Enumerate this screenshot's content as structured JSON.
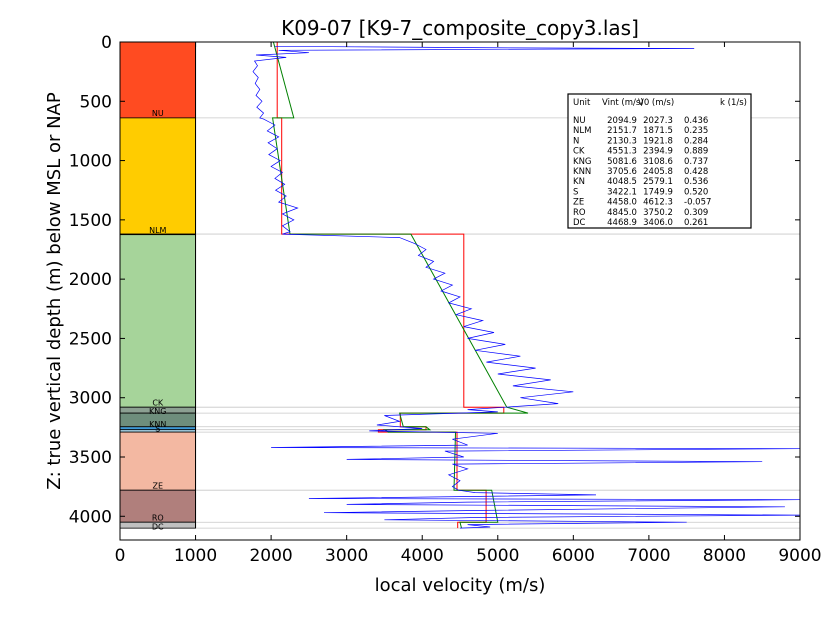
{
  "chart_data": {
    "type": "line",
    "title": "K09-07 [K9-7_composite_copy3.las]",
    "xlabel": "local velocity (m/s)",
    "ylabel": "Z: true vertical depth (m) below MSL or NAP",
    "xlim": [
      0,
      9000
    ],
    "ylim": [
      4200,
      0
    ],
    "x_ticks": [
      "0",
      "1000",
      "2000",
      "3000",
      "4000",
      "5000",
      "6000",
      "7000",
      "8000",
      "9000"
    ],
    "y_ticks": [
      "0",
      "500",
      "1000",
      "1500",
      "2000",
      "2500",
      "3000",
      "3500",
      "4000"
    ],
    "grid": false,
    "legend_position": "upper-right",
    "units": [
      {
        "name": "NU",
        "top": 0,
        "base": 640,
        "color": "#ff4b21",
        "vint": "2094.9",
        "v0": "2027.3",
        "k": "0.436"
      },
      {
        "name": "NLM",
        "top": 640,
        "base": 1620,
        "color": "#ffcc00",
        "vint": "2151.7",
        "v0": "1871.5",
        "k": "0.235"
      },
      {
        "name": "N",
        "top": 1620,
        "base": 1625,
        "color": "#b8d8a8",
        "vint": "2130.3",
        "v0": "1921.8",
        "k": "0.284"
      },
      {
        "name": "CK",
        "top": 1625,
        "base": 3080,
        "color": "#a6d49a",
        "vint": "4551.3",
        "v0": "2394.9",
        "k": "0.889"
      },
      {
        "name": "KNG",
        "top": 3080,
        "base": 3130,
        "color": "#8ca092",
        "vint": "5081.6",
        "v0": "3108.6",
        "k": "0.737"
      },
      {
        "name": "KNN",
        "top": 3130,
        "base": 3245,
        "color": "#6e8e7c",
        "vint": "3705.6",
        "v0": "2405.8",
        "k": "0.428"
      },
      {
        "name": "KN",
        "top": 3245,
        "base": 3270,
        "color": "#3f9ad6",
        "vint": "4048.5",
        "v0": "2579.1",
        "k": "0.536"
      },
      {
        "name": "S",
        "top": 3270,
        "base": 3290,
        "color": "#aedcf0",
        "vint": "3422.1",
        "v0": "1749.9",
        "k": "0.520"
      },
      {
        "name": "ZE",
        "top": 3290,
        "base": 3780,
        "color": "#f3b8a2",
        "vint": "4458.0",
        "v0": "4612.3",
        "k": "-0.057"
      },
      {
        "name": "RO",
        "top": 3780,
        "base": 4050,
        "color": "#b07f7c",
        "vint": "4845.0",
        "v0": "3750.2",
        "k": "0.309"
      },
      {
        "name": "DC",
        "top": 4050,
        "base": 4100,
        "color": "#c0c0c0",
        "vint": "4468.9",
        "v0": "3406.0",
        "k": "0.261"
      }
    ],
    "strip_labels": [
      {
        "text": "NU",
        "depth": 600
      },
      {
        "text": "NLM",
        "depth": 1585
      },
      {
        "text": "CK",
        "depth": 3040
      },
      {
        "text": "KNG",
        "depth": 3110
      },
      {
        "text": "KNN",
        "depth": 3220
      },
      {
        "text": "S",
        "depth": 3260
      },
      {
        "text": "ZE",
        "depth": 3740
      },
      {
        "text": "RO",
        "depth": 4010
      },
      {
        "text": "DC",
        "depth": 4085
      }
    ],
    "legend_header": {
      "unit": "Unit",
      "vint": "Vint (m/s)",
      "v0": "V0 (m/s)",
      "k": "k (1/s)"
    },
    "series": [
      {
        "role": "interval-velocity",
        "color": "#ff0000",
        "points": [
          [
            2080,
            0
          ],
          [
            2080,
            640
          ],
          [
            2140,
            640
          ],
          [
            2140,
            1620
          ],
          [
            4550,
            1620
          ],
          [
            4550,
            3080
          ],
          [
            5080,
            3080
          ],
          [
            5080,
            3130
          ],
          [
            3710,
            3130
          ],
          [
            3710,
            3245
          ],
          [
            4050,
            3245
          ],
          [
            4050,
            3270
          ],
          [
            3420,
            3270
          ],
          [
            3420,
            3290
          ],
          [
            4460,
            3290
          ],
          [
            4460,
            3780
          ],
          [
            4845,
            3780
          ],
          [
            4845,
            4050
          ],
          [
            4470,
            4050
          ],
          [
            4470,
            4100
          ]
        ]
      },
      {
        "role": "v0-k-model",
        "color": "#008000",
        "points": [
          [
            2030,
            0
          ],
          [
            2300,
            640
          ],
          [
            2020,
            640
          ],
          [
            2250,
            1620
          ],
          [
            3850,
            1620
          ],
          [
            5120,
            3080
          ],
          [
            5400,
            3130
          ],
          [
            3700,
            3130
          ],
          [
            3750,
            3245
          ],
          [
            4050,
            3245
          ],
          [
            4100,
            3270
          ],
          [
            3500,
            3270
          ],
          [
            3550,
            3290
          ],
          [
            4440,
            3290
          ],
          [
            4420,
            3780
          ],
          [
            4920,
            3780
          ],
          [
            5000,
            4050
          ],
          [
            4500,
            4050
          ],
          [
            4520,
            4100
          ]
        ]
      },
      {
        "role": "log-velocity",
        "color": "#0000ff",
        "points": [
          [
            2050,
            40
          ],
          [
            2800,
            40
          ],
          [
            5200,
            50
          ],
          [
            7600,
            55
          ],
          [
            2100,
            70
          ],
          [
            2500,
            90
          ],
          [
            1800,
            110
          ],
          [
            2200,
            130
          ],
          [
            1780,
            160
          ],
          [
            1820,
            200
          ],
          [
            1760,
            250
          ],
          [
            1830,
            300
          ],
          [
            1790,
            350
          ],
          [
            1850,
            400
          ],
          [
            1800,
            450
          ],
          [
            1880,
            500
          ],
          [
            1810,
            550
          ],
          [
            1900,
            600
          ],
          [
            1850,
            640
          ],
          [
            1900,
            650
          ],
          [
            2050,
            700
          ],
          [
            1950,
            750
          ],
          [
            2100,
            800
          ],
          [
            1960,
            850
          ],
          [
            2080,
            900
          ],
          [
            1970,
            950
          ],
          [
            2120,
            1000
          ],
          [
            2000,
            1050
          ],
          [
            2150,
            1100
          ],
          [
            2050,
            1150
          ],
          [
            2180,
            1200
          ],
          [
            2060,
            1250
          ],
          [
            2200,
            1300
          ],
          [
            2100,
            1350
          ],
          [
            2350,
            1400
          ],
          [
            2150,
            1450
          ],
          [
            2300,
            1500
          ],
          [
            2150,
            1550
          ],
          [
            2250,
            1600
          ],
          [
            2150,
            1620
          ],
          [
            3700,
            1650
          ],
          [
            3900,
            1700
          ],
          [
            4050,
            1750
          ],
          [
            3950,
            1800
          ],
          [
            4150,
            1850
          ],
          [
            4050,
            1900
          ],
          [
            4300,
            1950
          ],
          [
            4150,
            2000
          ],
          [
            4400,
            2050
          ],
          [
            4250,
            2100
          ],
          [
            4500,
            2150
          ],
          [
            4350,
            2200
          ],
          [
            4650,
            2250
          ],
          [
            4450,
            2300
          ],
          [
            4800,
            2350
          ],
          [
            4550,
            2400
          ],
          [
            4950,
            2450
          ],
          [
            4600,
            2500
          ],
          [
            5100,
            2550
          ],
          [
            4700,
            2600
          ],
          [
            5300,
            2650
          ],
          [
            4850,
            2700
          ],
          [
            5500,
            2750
          ],
          [
            5000,
            2800
          ],
          [
            5700,
            2850
          ],
          [
            5200,
            2900
          ],
          [
            6000,
            2950
          ],
          [
            5300,
            3000
          ],
          [
            5800,
            3050
          ],
          [
            5100,
            3080
          ],
          [
            4600,
            3100
          ],
          [
            5000,
            3120
          ],
          [
            3500,
            3150
          ],
          [
            3700,
            3200
          ],
          [
            3400,
            3230
          ],
          [
            3800,
            3250
          ],
          [
            4000,
            3260
          ],
          [
            3300,
            3280
          ],
          [
            5000,
            3300
          ],
          [
            4400,
            3350
          ],
          [
            4600,
            3400
          ],
          [
            2000,
            3420
          ],
          [
            9000,
            3430
          ],
          [
            4300,
            3450
          ],
          [
            4550,
            3500
          ],
          [
            3000,
            3520
          ],
          [
            8500,
            3540
          ],
          [
            4400,
            3560
          ],
          [
            4600,
            3600
          ],
          [
            4350,
            3650
          ],
          [
            4500,
            3700
          ],
          [
            4400,
            3750
          ],
          [
            4480,
            3780
          ],
          [
            4700,
            3800
          ],
          [
            6300,
            3820
          ],
          [
            2500,
            3850
          ],
          [
            9000,
            3860
          ],
          [
            4600,
            3880
          ],
          [
            3000,
            3900
          ],
          [
            8800,
            3920
          ],
          [
            4800,
            3950
          ],
          [
            2700,
            3970
          ],
          [
            9000,
            3990
          ],
          [
            4700,
            4010
          ],
          [
            3500,
            4030
          ],
          [
            7500,
            4050
          ],
          [
            4600,
            4070
          ],
          [
            4900,
            4090
          ],
          [
            4500,
            4100
          ]
        ]
      }
    ],
    "reference_depths": [
      640,
      1620,
      3080,
      3130,
      3245,
      3270,
      3290,
      3780,
      4050,
      4100
    ]
  }
}
